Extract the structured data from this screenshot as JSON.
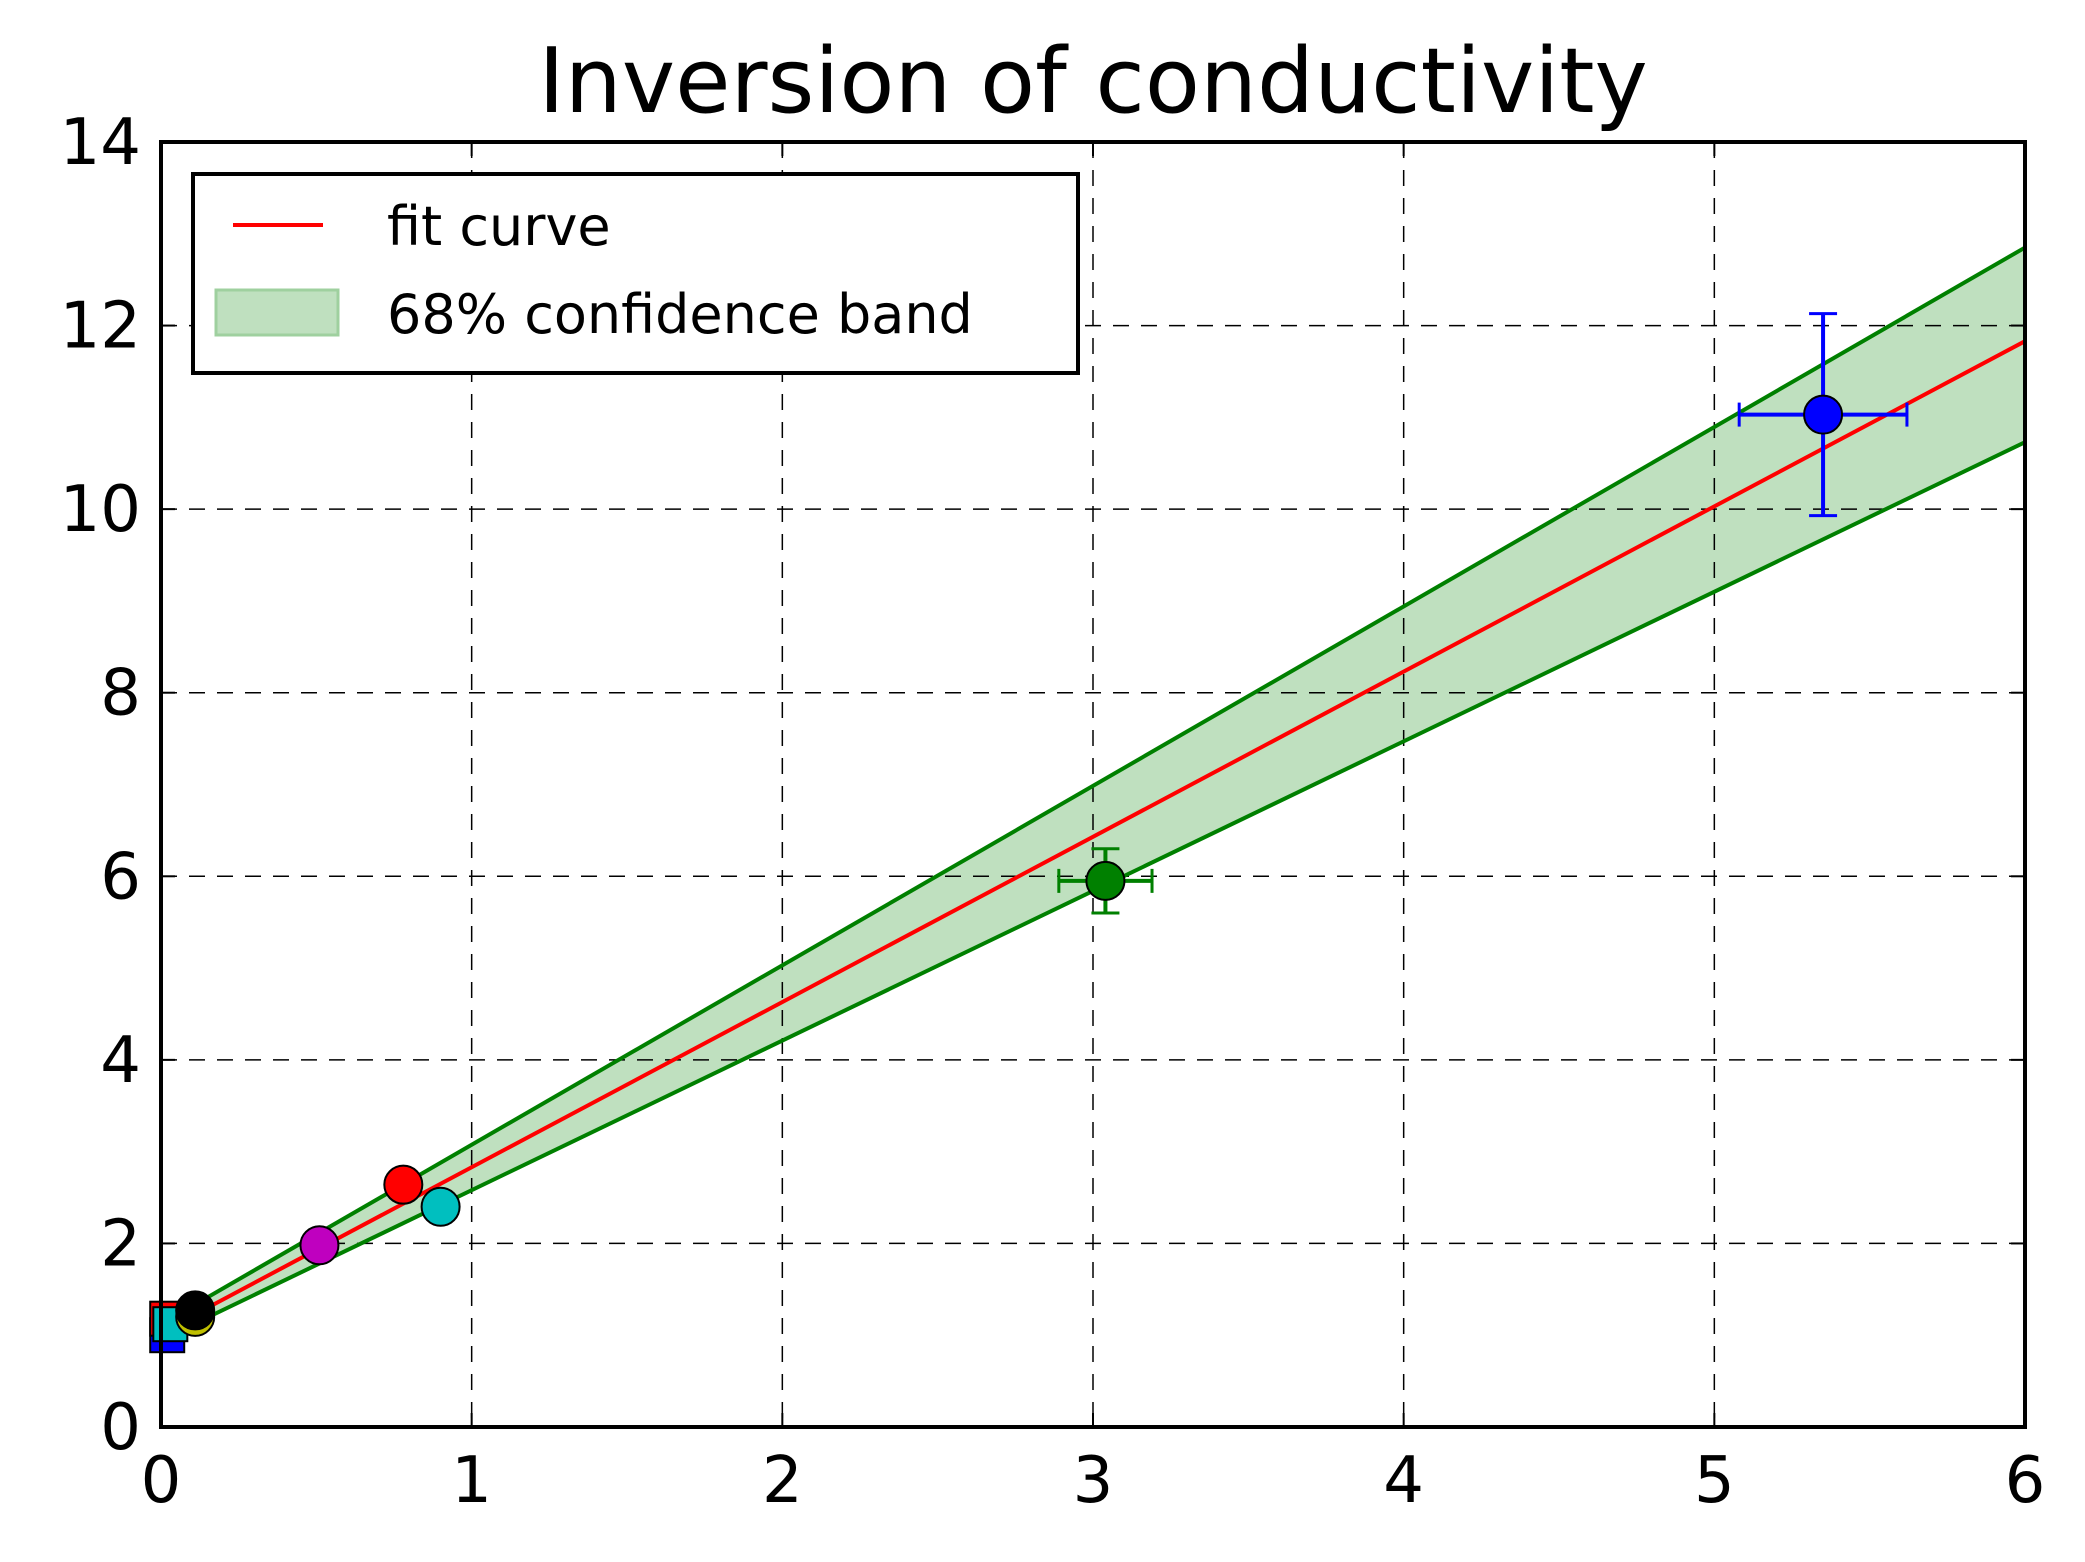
{
  "chart_data": {
    "type": "scatter",
    "title": "Inversion of conductivity",
    "xlabel": "",
    "ylabel": "",
    "xlim": [
      0,
      6
    ],
    "ylim": [
      0,
      14
    ],
    "xticks": [
      0,
      1,
      2,
      3,
      4,
      5,
      6
    ],
    "yticks": [
      0,
      2,
      4,
      6,
      8,
      10,
      12,
      14
    ],
    "xtick_labels": [
      "0",
      "1",
      "2",
      "3",
      "4",
      "5",
      "6"
    ],
    "ytick_labels": [
      "0",
      "2",
      "4",
      "6",
      "8",
      "10",
      "12",
      "14"
    ],
    "grid": true,
    "grid_style": "dashed",
    "legend_position": "top-left",
    "fit": {
      "name": "fit curve",
      "color": "#ff0000",
      "x": [
        0,
        6
      ],
      "y": [
        1.03,
        11.83
      ]
    },
    "band": {
      "name": "68% confidence band",
      "fill_color": "#bfe0bf",
      "edge_color": "#008000",
      "x": [
        0,
        6
      ],
      "upper": [
        1.12,
        12.85
      ],
      "lower": [
        0.95,
        10.73
      ]
    },
    "points": [
      {
        "x": 0.02,
        "y": 1.0,
        "marker": "square",
        "color": "#0000ff"
      },
      {
        "x": 0.02,
        "y": 1.18,
        "marker": "square",
        "color": "#ff0000"
      },
      {
        "x": 0.03,
        "y": 1.12,
        "marker": "square",
        "color": "#00bfbf"
      },
      {
        "x": 0.11,
        "y": 1.2,
        "marker": "circle",
        "color": "#bfbf00"
      },
      {
        "x": 0.11,
        "y": 1.27,
        "marker": "circle",
        "color": "#000000"
      },
      {
        "x": 0.51,
        "y": 1.98,
        "marker": "circle",
        "color": "#bf00bf"
      },
      {
        "x": 0.78,
        "y": 2.64,
        "marker": "circle",
        "color": "#ff0000"
      },
      {
        "x": 0.9,
        "y": 2.4,
        "marker": "circle",
        "color": "#00bfbf"
      },
      {
        "x": 3.04,
        "y": 5.95,
        "marker": "circle",
        "color": "#008000",
        "xerr": 0.15,
        "yerr": 0.35
      },
      {
        "x": 5.35,
        "y": 11.03,
        "marker": "circle",
        "color": "#0000ff",
        "xerr": 0.27,
        "yerr": 1.1
      }
    ]
  }
}
